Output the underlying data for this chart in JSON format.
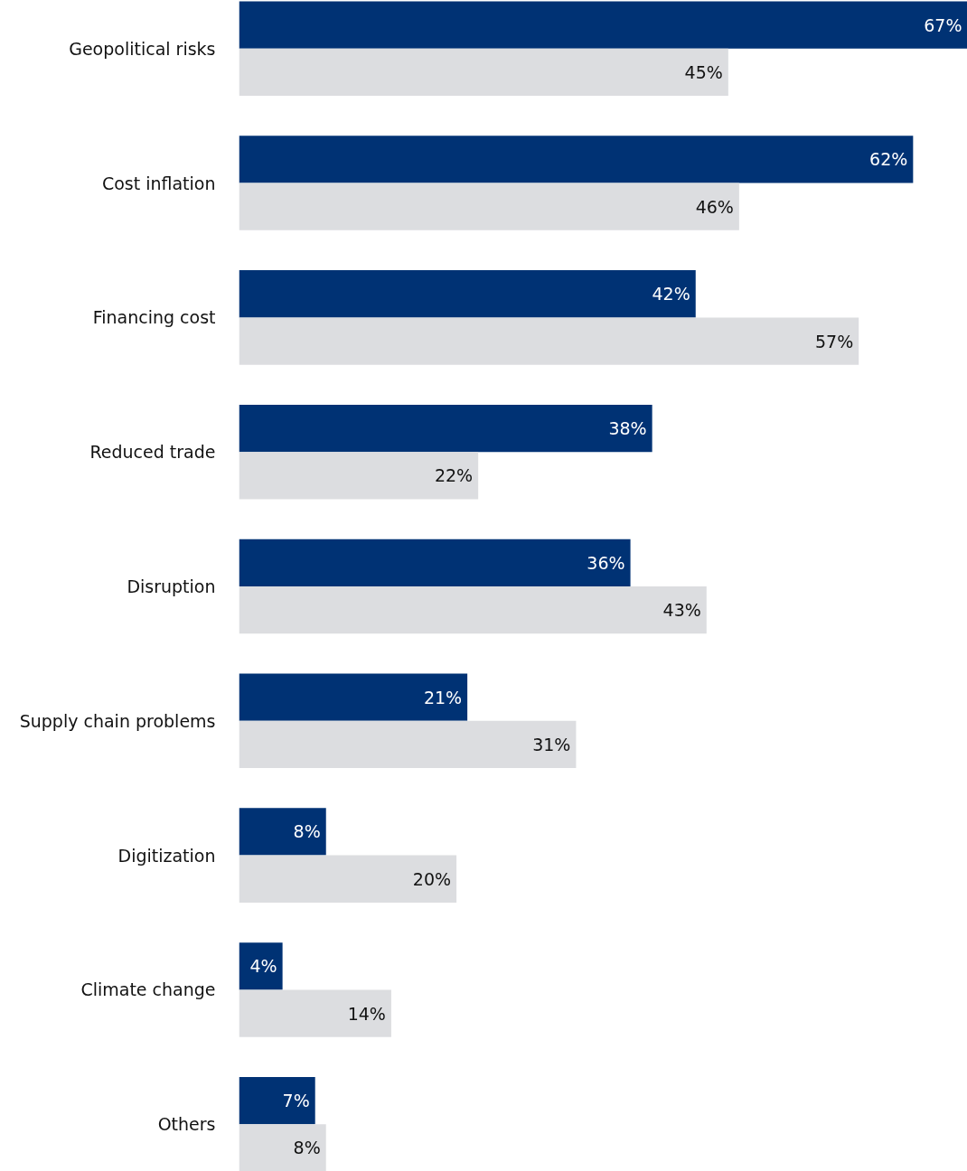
{
  "chart_data": {
    "type": "bar",
    "orientation": "horizontal",
    "categories": [
      "Geopolitical risks",
      "Cost inflation",
      "Financing cost",
      "Reduced trade",
      "Disruption",
      "Supply chain problems",
      "Digitization",
      "Climate change",
      "Others"
    ],
    "series": [
      {
        "color": "#003274",
        "values": [
          67,
          62,
          42,
          38,
          36,
          21,
          8,
          4,
          7
        ],
        "value_labels": [
          "67%",
          "62%",
          "42%",
          "38%",
          "36%",
          "21%",
          "8%",
          "4%",
          "7%"
        ]
      },
      {
        "color": "#dcdde0",
        "values": [
          45,
          46,
          57,
          22,
          43,
          31,
          20,
          14,
          8
        ],
        "value_labels": [
          "45%",
          "46%",
          "57%",
          "22%",
          "43%",
          "31%",
          "20%",
          "14%",
          "8%"
        ]
      }
    ],
    "xlim": [
      0,
      67
    ],
    "tick_labels": "y"
  }
}
